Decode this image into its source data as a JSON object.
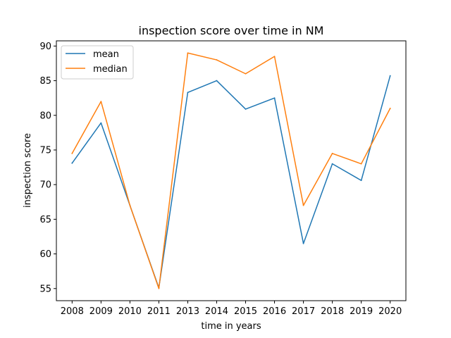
{
  "chart_data": {
    "type": "line",
    "title": "inspection score over time in NM",
    "xlabel": "time in years",
    "ylabel": "inspection score",
    "x": [
      "2008",
      "2009",
      "2010",
      "2011",
      "2013",
      "2014",
      "2015",
      "2016",
      "2017",
      "2018",
      "2019",
      "2020"
    ],
    "yticks": [
      55,
      60,
      65,
      70,
      75,
      80,
      85,
      90
    ],
    "ylim": [
      53.25,
      90.75
    ],
    "grid": false,
    "legend_position": "top-left",
    "series": [
      {
        "name": "mean",
        "color": "#1f77b4",
        "values": [
          73.1,
          78.9,
          67.0,
          55.1,
          83.3,
          85.0,
          80.9,
          82.5,
          61.5,
          73.0,
          70.6,
          85.7
        ]
      },
      {
        "name": "median",
        "color": "#ff7f0e",
        "values": [
          74.5,
          82.0,
          67.0,
          55.0,
          89.0,
          88.0,
          86.0,
          88.5,
          67.0,
          74.5,
          73.0,
          81.0
        ]
      }
    ]
  }
}
